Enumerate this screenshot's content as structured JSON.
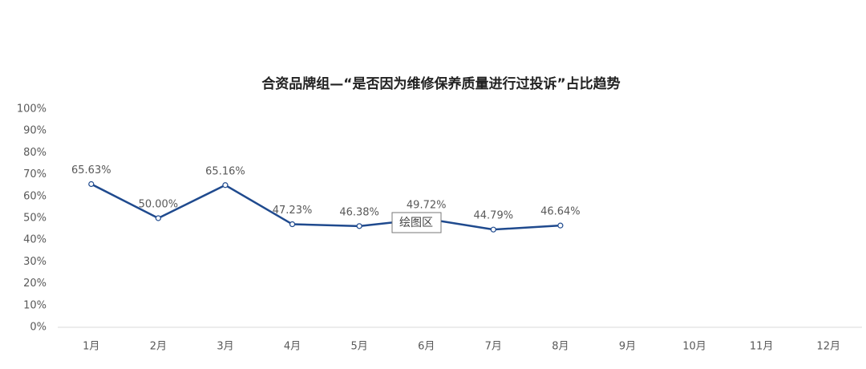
{
  "chart_data": {
    "type": "line",
    "title": "合资品牌组—“是否因为维修保养质量进行过投诉”占比趋势",
    "categories": [
      "1月",
      "2月",
      "3月",
      "4月",
      "5月",
      "6月",
      "7月",
      "8月",
      "9月",
      "10月",
      "11月",
      "12月"
    ],
    "values": [
      65.63,
      50.0,
      65.16,
      47.23,
      46.38,
      49.72,
      44.79,
      46.64,
      null,
      null,
      null,
      null
    ],
    "value_labels": [
      "65.63%",
      "50.00%",
      "65.16%",
      "47.23%",
      "46.38%",
      "49.72%",
      "44.79%",
      "46.64%",
      null,
      null,
      null,
      null
    ],
    "color": "#1f4a8e",
    "ylim": [
      0,
      100
    ],
    "yticks": [
      {
        "value": 0,
        "label": "0%"
      },
      {
        "value": 10,
        "label": "10%"
      },
      {
        "value": 20,
        "label": "20%"
      },
      {
        "value": 30,
        "label": "30%"
      },
      {
        "value": 40,
        "label": "40%"
      },
      {
        "value": 50,
        "label": "50%"
      },
      {
        "value": 60,
        "label": "60%"
      },
      {
        "value": 70,
        "label": "70%"
      },
      {
        "value": 80,
        "label": "80%"
      },
      {
        "value": 90,
        "label": "90%"
      },
      {
        "value": 100,
        "label": "100%"
      }
    ],
    "tooltip": "绘图区"
  }
}
